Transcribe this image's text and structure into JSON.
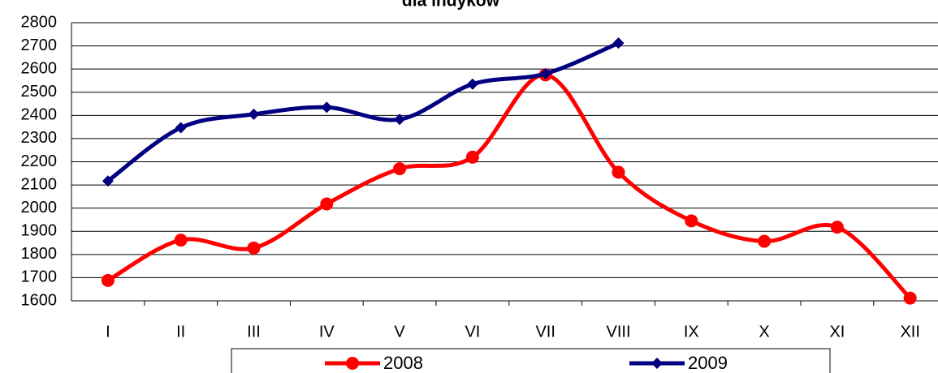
{
  "chart_data": {
    "type": "line",
    "title": "dla indyków",
    "categories": [
      "I",
      "II",
      "III",
      "IV",
      "V",
      "VI",
      "VII",
      "VIII",
      "IX",
      "X",
      "XI",
      "XII"
    ],
    "series": [
      {
        "name": "2008",
        "color": "#ff0000",
        "marker": "circle",
        "values": [
          1688,
          1862,
          1828,
          2018,
          2170,
          2220,
          2575,
          2155,
          1945,
          1857,
          1918,
          1612
        ]
      },
      {
        "name": "2009",
        "color": "#000080",
        "marker": "diamond",
        "values": [
          2117,
          2347,
          2405,
          2435,
          2383,
          2535,
          2580,
          2712,
          null,
          null,
          null,
          null
        ]
      }
    ],
    "ylim": [
      1600,
      2800
    ],
    "yticks": [
      1600,
      1700,
      1800,
      1900,
      2000,
      2100,
      2200,
      2300,
      2400,
      2500,
      2600,
      2700,
      2800
    ],
    "grid": true,
    "smooth": true,
    "legend": "bottom"
  }
}
